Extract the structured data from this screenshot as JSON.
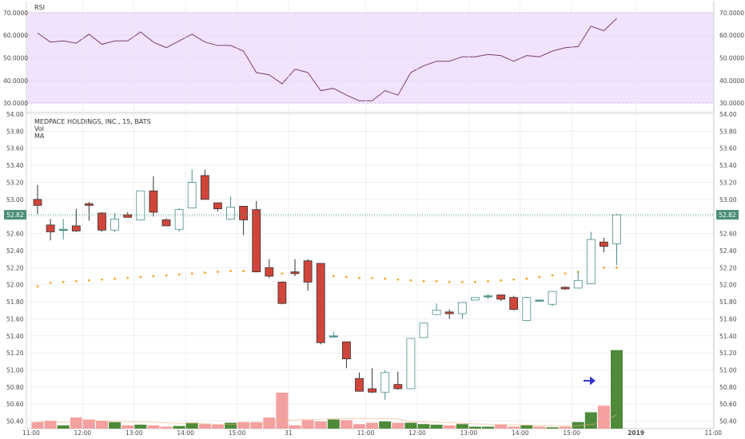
{
  "colors": {
    "up_border": "#4a8c8c",
    "up_fill": "#ffffff",
    "down_fill": "#d0453a",
    "flat_fill": "#4e9a8a",
    "vol_up": "#4e8a3a",
    "vol_down": "#f4a0a0",
    "ma": "#f5a623",
    "rsi_line": "#7b3f6e",
    "rsi_band": "#f1e3fc",
    "rsi_band_border": "#c9a7e8",
    "grid": "#e9e9ef",
    "price_tag": "#4d8f7a",
    "arrow": "#3333cc"
  },
  "chart_data": [
    {
      "type": "line",
      "title": "RSI",
      "y_ticks": [
        "70.0000",
        "60.0000",
        "50.0000",
        "40.0000",
        "30.0000"
      ],
      "ylim": [
        26.5,
        73.5
      ],
      "band": [
        30,
        70
      ],
      "series": [
        {
          "values": [
            61,
            57,
            57.5,
            56.5,
            60.5,
            56,
            57.5,
            57.5,
            61.5,
            57,
            54.5,
            57.5,
            60.5,
            57,
            55.5,
            55.5,
            53,
            43.5,
            42.5,
            38.5,
            45,
            43.5,
            35.5,
            36.5,
            33.5,
            31,
            31,
            35.5,
            33.5,
            43.5,
            46.5,
            48.5,
            48.5,
            50.5,
            50.5,
            51.5,
            51,
            48.5,
            51,
            50.5,
            53,
            54.5,
            55,
            64,
            62,
            67.5
          ]
        }
      ]
    },
    {
      "type": "candlestick",
      "title": "MEDPACE HOLDINGS, INC., 15, BATS",
      "legend": [
        "Vol",
        "MA"
      ],
      "y_ticks": [
        "54.00",
        "53.80",
        "53.60",
        "53.40",
        "53.20",
        "53.00",
        "52.80",
        "52.60",
        "52.40",
        "52.20",
        "52.00",
        "51.80",
        "51.60",
        "51.40",
        "51.20",
        "51.00",
        "50.80",
        "50.60",
        "50.40"
      ],
      "ylim": [
        50.312,
        54.0
      ],
      "last_price": "52.82",
      "last_price_value": 52.82,
      "x_tick_labels": [
        "11:00",
        "12:00",
        "13:00",
        "14:00",
        "15:00",
        "31",
        "11:00",
        "12:00",
        "13:00",
        "14:00",
        "15:00",
        "2019",
        "11:00"
      ],
      "candles": [
        [
          53.0,
          53.17,
          52.83,
          52.93
        ],
        [
          52.7,
          52.77,
          52.52,
          52.62
        ],
        [
          52.64,
          52.77,
          52.53,
          52.65
        ],
        [
          52.69,
          52.89,
          52.62,
          52.63
        ],
        [
          52.95,
          52.97,
          52.75,
          52.93
        ],
        [
          52.84,
          52.85,
          52.62,
          52.64
        ],
        [
          52.64,
          52.84,
          52.62,
          52.77
        ],
        [
          52.82,
          52.85,
          52.8,
          52.79
        ],
        [
          52.76,
          53.1,
          52.76,
          53.1
        ],
        [
          53.1,
          53.27,
          52.8,
          52.85
        ],
        [
          52.76,
          52.78,
          52.69,
          52.69
        ],
        [
          52.65,
          52.9,
          52.62,
          52.88
        ],
        [
          52.9,
          53.35,
          52.9,
          53.2
        ],
        [
          53.28,
          53.35,
          53.0,
          53.0
        ],
        [
          52.96,
          52.96,
          52.86,
          52.89
        ],
        [
          52.77,
          53.03,
          52.77,
          52.91
        ],
        [
          52.92,
          52.92,
          52.58,
          52.76
        ],
        [
          52.88,
          52.98,
          52.15,
          52.15
        ],
        [
          52.2,
          52.3,
          52.08,
          52.1
        ],
        [
          52.03,
          52.04,
          51.77,
          51.78
        ],
        [
          52.15,
          52.3,
          52.1,
          52.13
        ],
        [
          52.28,
          52.3,
          51.93,
          52.03
        ],
        [
          52.25,
          52.25,
          51.3,
          51.32
        ],
        [
          51.4,
          51.45,
          51.38,
          51.4
        ],
        [
          51.33,
          51.33,
          51.02,
          51.13
        ],
        [
          50.9,
          50.97,
          50.75,
          50.75
        ],
        [
          50.78,
          51.02,
          50.73,
          50.74
        ],
        [
          50.74,
          51.0,
          50.65,
          50.97
        ],
        [
          50.83,
          50.98,
          50.77,
          50.78
        ],
        [
          50.78,
          51.37,
          50.78,
          51.37
        ],
        [
          51.38,
          51.55,
          51.38,
          51.55
        ],
        [
          51.65,
          51.78,
          51.65,
          51.7
        ],
        [
          51.68,
          51.71,
          51.6,
          51.66
        ],
        [
          51.66,
          51.78,
          51.6,
          51.79
        ],
        [
          51.82,
          51.85,
          51.82,
          51.85
        ],
        [
          51.87,
          51.89,
          51.83,
          51.87
        ],
        [
          51.88,
          51.88,
          51.81,
          51.83
        ],
        [
          51.85,
          51.87,
          51.7,
          51.71
        ],
        [
          51.58,
          51.86,
          51.57,
          51.85
        ],
        [
          51.82,
          51.82,
          51.8,
          51.81
        ],
        [
          51.77,
          51.92,
          51.75,
          51.92
        ],
        [
          51.97,
          51.98,
          51.94,
          51.95
        ],
        [
          51.96,
          52.16,
          51.96,
          52.05
        ],
        [
          52.01,
          52.62,
          52.01,
          52.53
        ],
        [
          52.5,
          52.55,
          52.38,
          52.45
        ],
        [
          52.48,
          52.83,
          52.23,
          52.82
        ]
      ],
      "ma": [
        51.98,
        52.02,
        52.03,
        52.04,
        52.05,
        52.06,
        52.07,
        52.08,
        52.09,
        52.1,
        52.11,
        52.12,
        52.13,
        52.14,
        52.15,
        52.16,
        52.16,
        52.16,
        52.14,
        52.13,
        52.13,
        52.12,
        52.11,
        52.1,
        52.09,
        52.08,
        52.08,
        52.07,
        52.06,
        52.05,
        52.04,
        52.04,
        52.03,
        52.03,
        52.03,
        52.04,
        52.05,
        52.06,
        52.07,
        52.09,
        52.11,
        52.13,
        52.15,
        52.17,
        52.2,
        52.2
      ],
      "volume": [
        0.1,
        0.12,
        0.05,
        0.17,
        0.14,
        0.12,
        0.1,
        0.05,
        0.06,
        0.05,
        0.03,
        0.04,
        0.09,
        0.07,
        0.06,
        0.09,
        0.1,
        0.1,
        0.17,
        0.55,
        0.05,
        0.13,
        0.11,
        0.14,
        0.13,
        0.07,
        0.09,
        0.11,
        0.09,
        0.09,
        0.07,
        0.06,
        0.05,
        0.07,
        0.03,
        0.03,
        0.06,
        0.03,
        0.05,
        0.03,
        0.02,
        0.03,
        0.1,
        0.25,
        0.35,
        1.2
      ]
    }
  ]
}
